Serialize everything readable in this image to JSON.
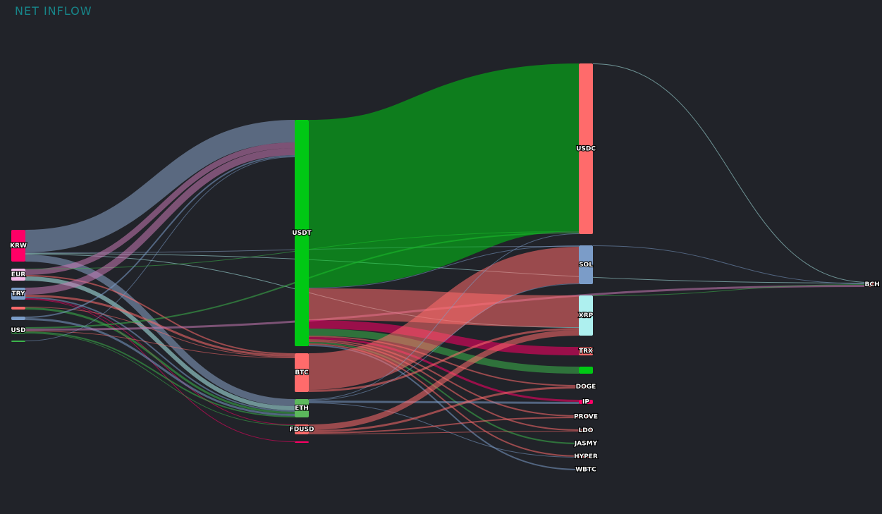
{
  "chart_data": {
    "type": "sankey",
    "title": "NET INFLOW",
    "nodes": [
      {
        "name": "KRW",
        "color": "#ff0066"
      },
      {
        "name": "EUR",
        "color": "#f5b8e8"
      },
      {
        "name": "TRY",
        "color": "#7b9cc8"
      },
      {
        "name": null,
        "color": "#ff6b6b"
      },
      {
        "name": null,
        "color": "#7b9cc8"
      },
      {
        "name": "USD",
        "color": "#3cb44b"
      },
      {
        "name": null,
        "color": "#3cb44b"
      },
      {
        "name": "USDT",
        "color": "#00c814"
      },
      {
        "name": "BTC",
        "color": "#ff6b6b"
      },
      {
        "name": "ETH",
        "color": "#5cb85c"
      },
      {
        "name": "FDUSD",
        "color": "#ff6b6b"
      },
      {
        "name": null,
        "color": "#ff0066"
      },
      {
        "name": "USDC",
        "color": "#ff6b6b"
      },
      {
        "name": "SOL",
        "color": "#7b9cc8"
      },
      {
        "name": "XRP",
        "color": "#aef0ef"
      },
      {
        "name": "TRX",
        "color": "#ff6b6b"
      },
      {
        "name": null,
        "color": "#00c814"
      },
      {
        "name": "DOGE",
        "color": "#ff6b6b"
      },
      {
        "name": "IP",
        "color": "#ff0066"
      },
      {
        "name": "PROVE",
        "color": "#ff6b6b"
      },
      {
        "name": "LDO",
        "color": "#ff6b6b"
      },
      {
        "name": "JASMY",
        "color": "#7b9cc8"
      },
      {
        "name": "HYPER",
        "color": "#ff6b6b"
      },
      {
        "name": "WBTC",
        "color": "#7b9cc8"
      },
      {
        "name": "BCH",
        "color": "#ff6b6b"
      }
    ],
    "links": [
      {
        "source": 0,
        "target": 7,
        "value": 32,
        "color": "#8aa4c8"
      },
      {
        "source": 0,
        "target": 9,
        "value": 10,
        "color": "#8aa4c8"
      },
      {
        "source": 0,
        "target": 13,
        "value": 1,
        "color": "#8aa4c8"
      },
      {
        "source": 0,
        "target": 14,
        "value": 1,
        "color": "#aef0ef"
      },
      {
        "source": 0,
        "target": 24,
        "value": 1,
        "color": "#aef0ef"
      },
      {
        "source": 1,
        "target": 7,
        "value": 8,
        "color": "#c87ab4"
      },
      {
        "source": 1,
        "target": 9,
        "value": 6,
        "color": "#aef0ef"
      },
      {
        "source": 1,
        "target": 8,
        "value": 2,
        "color": "#ff6b6b"
      },
      {
        "source": 1,
        "target": 12,
        "value": 1,
        "color": "#3cb44b"
      },
      {
        "source": 2,
        "target": 7,
        "value": 10,
        "color": "#c87ab4"
      },
      {
        "source": 2,
        "target": 8,
        "value": 3,
        "color": "#ff6b6b"
      },
      {
        "source": 2,
        "target": 9,
        "value": 2,
        "color": "#7b9cc8"
      },
      {
        "source": 2,
        "target": 10,
        "value": 1,
        "color": "#ff0066"
      },
      {
        "source": 2,
        "target": 11,
        "value": 1,
        "color": "#ff0066"
      },
      {
        "source": 3,
        "target": 9,
        "value": 3,
        "color": "#3cb44b"
      },
      {
        "source": 3,
        "target": 8,
        "value": 1,
        "color": "#ff6b6b"
      },
      {
        "source": 4,
        "target": 7,
        "value": 2,
        "color": "#7b9cc8"
      },
      {
        "source": 4,
        "target": 9,
        "value": 3,
        "color": "#7b9cc8"
      },
      {
        "source": 5,
        "target": 24,
        "value": 3,
        "color": "#c87ab4"
      },
      {
        "source": 5,
        "target": 12,
        "value": 2,
        "color": "#3cb44b"
      },
      {
        "source": 5,
        "target": 9,
        "value": 2,
        "color": "#3cb44b"
      },
      {
        "source": 5,
        "target": 8,
        "value": 1,
        "color": "#ff6b6b"
      },
      {
        "source": 5,
        "target": 10,
        "value": 1,
        "color": "#3cb44b"
      },
      {
        "source": 6,
        "target": 7,
        "value": 1,
        "color": "#7b9cc8"
      },
      {
        "source": 7,
        "target": 12,
        "value": 238,
        "color": "#00c814"
      },
      {
        "source": 7,
        "target": 13,
        "value": 1,
        "color": "#7b9cc8"
      },
      {
        "source": 7,
        "target": 14,
        "value": 45,
        "color": "#ff6b6b"
      },
      {
        "source": 7,
        "target": 15,
        "value": 12,
        "color": "#ff0066"
      },
      {
        "source": 7,
        "target": 16,
        "value": 10,
        "color": "#3cb44b"
      },
      {
        "source": 7,
        "target": 17,
        "value": 2,
        "color": "#ff6b6b"
      },
      {
        "source": 7,
        "target": 18,
        "value": 3,
        "color": "#ff0066"
      },
      {
        "source": 7,
        "target": 19,
        "value": 2,
        "color": "#ff6b6b"
      },
      {
        "source": 7,
        "target": 20,
        "value": 2,
        "color": "#ff6b6b"
      },
      {
        "source": 7,
        "target": 21,
        "value": 2,
        "color": "#3cb44b"
      },
      {
        "source": 7,
        "target": 22,
        "value": 2,
        "color": "#ff6b6b"
      },
      {
        "source": 7,
        "target": 23,
        "value": 2,
        "color": "#7b9cc8"
      },
      {
        "source": 8,
        "target": 13,
        "value": 52,
        "color": "#ff6b6b"
      },
      {
        "source": 8,
        "target": 14,
        "value": 3,
        "color": "#ff6b6b"
      },
      {
        "source": 9,
        "target": 12,
        "value": 1,
        "color": "#7b9cc8"
      },
      {
        "source": 9,
        "target": 13,
        "value": 1,
        "color": "#7b9cc8"
      },
      {
        "source": 9,
        "target": 18,
        "value": 3,
        "color": "#7b9cc8"
      },
      {
        "source": 9,
        "target": 22,
        "value": 1,
        "color": "#7b9cc8"
      },
      {
        "source": 10,
        "target": 14,
        "value": 8,
        "color": "#ff6b6b"
      },
      {
        "source": 10,
        "target": 17,
        "value": 3,
        "color": "#ff6b6b"
      },
      {
        "source": 10,
        "target": 19,
        "value": 2,
        "color": "#ff6b6b"
      },
      {
        "source": 10,
        "target": 20,
        "value": 1,
        "color": "#ff6b6b"
      },
      {
        "source": 12,
        "target": 24,
        "value": 1,
        "color": "#aef0ef"
      },
      {
        "source": 13,
        "target": 24,
        "value": 1,
        "color": "#7b9cc8"
      },
      {
        "source": 14,
        "target": 24,
        "value": 1,
        "color": "#3cb44b"
      }
    ]
  }
}
